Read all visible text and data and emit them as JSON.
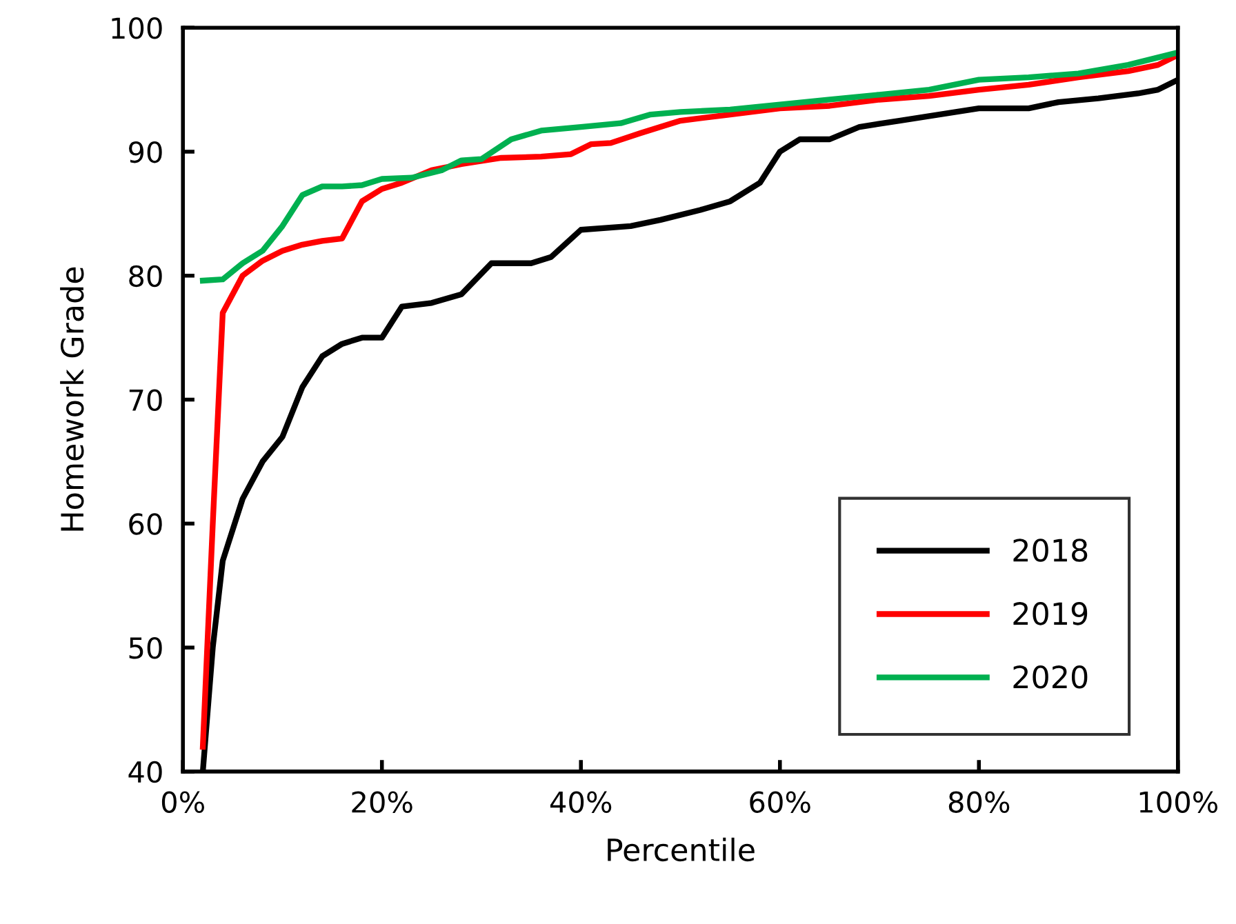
{
  "chart_data": {
    "type": "line",
    "xlabel": "Percentile",
    "ylabel": "Homework Grade",
    "xlim": [
      0,
      100
    ],
    "xticks": [
      {
        "value": 0,
        "label": "0%"
      },
      {
        "value": 20,
        "label": "20%"
      },
      {
        "value": 40,
        "label": "40%"
      },
      {
        "value": 60,
        "label": "60%"
      },
      {
        "value": 80,
        "label": "80%"
      },
      {
        "value": 100,
        "label": "100%"
      }
    ],
    "ylim": [
      40,
      100
    ],
    "yticks": [
      40,
      50,
      60,
      70,
      80,
      90,
      100
    ],
    "grid": false,
    "legend": "bottom right",
    "marker": "none",
    "line_style": "solid",
    "series": [
      {
        "name": "2018",
        "color": "#000000",
        "x": [
          2,
          3,
          4,
          6,
          8,
          10,
          12,
          14,
          16,
          18,
          20,
          22,
          25,
          28,
          31,
          35,
          37,
          40,
          45,
          48,
          52,
          55,
          58,
          60,
          62,
          65,
          68,
          72,
          76,
          80,
          85,
          88,
          92,
          96,
          98,
          100
        ],
        "values": [
          40,
          50,
          57,
          62,
          65,
          67,
          71,
          73.5,
          74.5,
          75,
          75,
          77.5,
          77.8,
          78.5,
          81,
          81,
          81.5,
          83.7,
          84,
          84.5,
          85.3,
          86,
          87.5,
          90,
          91,
          91,
          92,
          92.5,
          93,
          93.5,
          93.5,
          94,
          94.3,
          94.7,
          95,
          95.8
        ]
      },
      {
        "name": "2019",
        "color": "#ff0000",
        "x": [
          2,
          3,
          4,
          6,
          8,
          10,
          12,
          14,
          16,
          18,
          20,
          22,
          25,
          28,
          32,
          36,
          39,
          41,
          43,
          46,
          50,
          55,
          60,
          65,
          70,
          75,
          80,
          85,
          90,
          95,
          98,
          100
        ],
        "values": [
          42,
          60,
          77,
          80,
          81.2,
          82,
          82.5,
          82.8,
          83,
          86,
          87,
          87.5,
          88.5,
          89,
          89.5,
          89.6,
          89.8,
          90.6,
          90.7,
          91.5,
          92.5,
          93,
          93.5,
          93.7,
          94.2,
          94.5,
          95,
          95.4,
          96,
          96.5,
          97,
          97.8
        ]
      },
      {
        "name": "2020",
        "color": "#00b050",
        "x": [
          2,
          4,
          6,
          8,
          10,
          12,
          14,
          16,
          18,
          20,
          23,
          26,
          28,
          30,
          33,
          36,
          40,
          44,
          47,
          50,
          55,
          60,
          65,
          70,
          75,
          80,
          85,
          90,
          95,
          100
        ],
        "values": [
          79.6,
          79.7,
          81,
          82,
          84,
          86.5,
          87.2,
          87.2,
          87.3,
          87.8,
          87.9,
          88.5,
          89.3,
          89.4,
          91,
          91.7,
          92,
          92.3,
          93,
          93.2,
          93.4,
          93.8,
          94.2,
          94.6,
          95,
          95.8,
          96,
          96.3,
          97,
          98
        ]
      }
    ]
  }
}
